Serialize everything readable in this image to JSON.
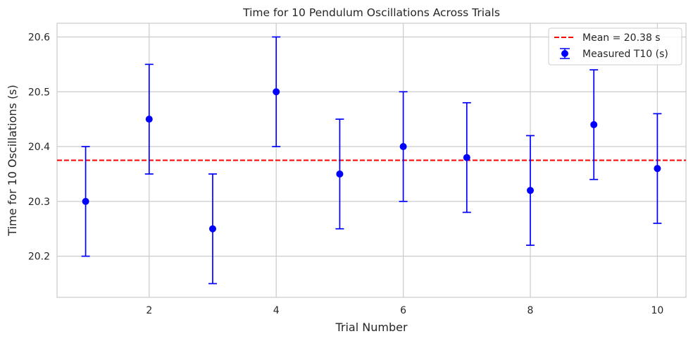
{
  "chart_data": {
    "type": "scatter",
    "title": "Time for 10 Pendulum Oscillations Across Trials",
    "xlabel": "Trial Number",
    "ylabel": "Time for 10 Oscillations (s)",
    "xlim": [
      0.55,
      10.45
    ],
    "ylim": [
      20.125,
      20.625
    ],
    "xticks": [
      2,
      4,
      6,
      8,
      10
    ],
    "yticks": [
      20.2,
      20.3,
      20.4,
      20.5,
      20.6
    ],
    "xtick_labels": [
      "2",
      "4",
      "6",
      "8",
      "10"
    ],
    "ytick_labels": [
      "20.2",
      "20.3",
      "20.4",
      "20.5",
      "20.6"
    ],
    "grid": true,
    "legend_position": "top-right",
    "series": [
      {
        "name": "Measured T10 (s)",
        "color": "#0000ff",
        "x": [
          1,
          2,
          3,
          4,
          5,
          6,
          7,
          8,
          9,
          10
        ],
        "y": [
          20.3,
          20.45,
          20.25,
          20.5,
          20.35,
          20.4,
          20.38,
          20.32,
          20.44,
          20.36
        ],
        "yerr": [
          0.1,
          0.1,
          0.1,
          0.1,
          0.1,
          0.1,
          0.1,
          0.1,
          0.1,
          0.1
        ]
      }
    ],
    "reference_line": {
      "name": "Mean = 20.38 s",
      "value": 20.375,
      "color": "#ff0000",
      "style": "dashed"
    }
  }
}
